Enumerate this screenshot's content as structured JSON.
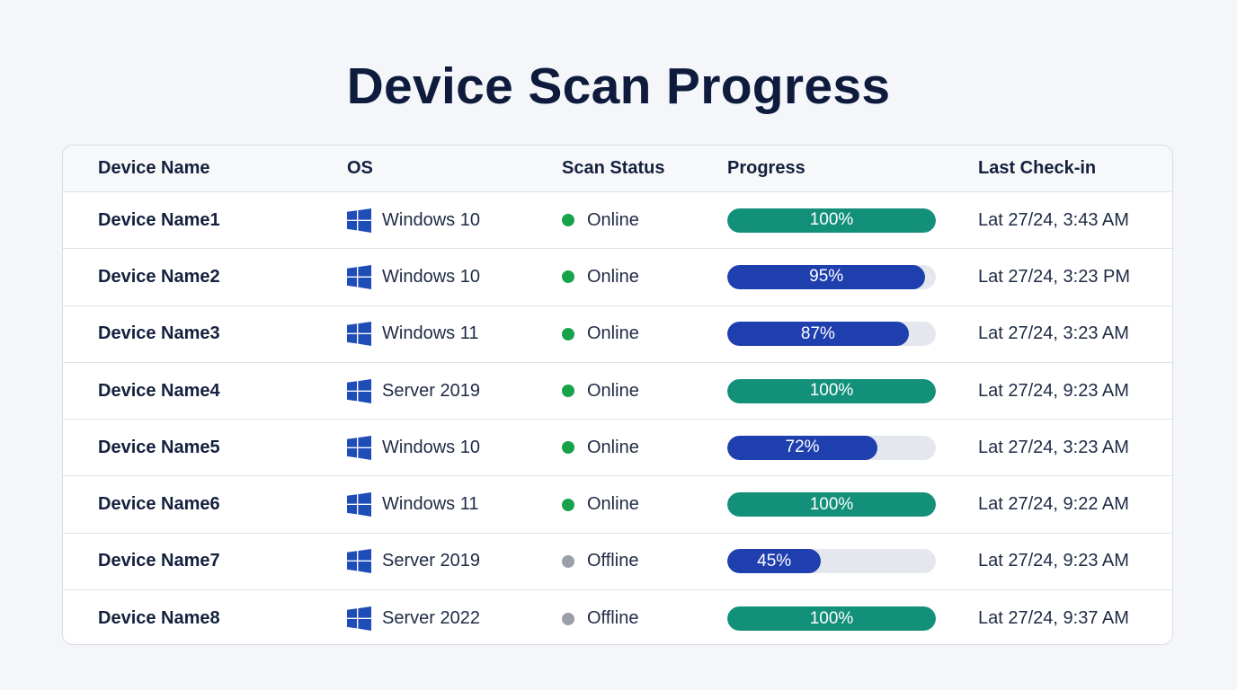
{
  "page": {
    "title": "Device Scan Progress"
  },
  "colors": {
    "complete": "#13907a",
    "in_progress": "#1f3fae",
    "online": "#16a34a",
    "offline": "#9aa0a8",
    "track": "#e4e7ed"
  },
  "table": {
    "columns": [
      "Device Name",
      "OS",
      "Scan Status",
      "Progress",
      "Last Check-in"
    ],
    "rows": [
      {
        "device": "Device Name1",
        "os": "Windows 10",
        "os_icon": "windows-logo-icon",
        "status": "Online",
        "progress": 100,
        "progress_label": "100%",
        "last_checkin": "Lat 27/24, 3:43 AM"
      },
      {
        "device": "Device Name2",
        "os": "Windows 10",
        "os_icon": "windows-logo-icon",
        "status": "Online",
        "progress": 95,
        "progress_label": "95%",
        "last_checkin": "Lat 27/24, 3:23 PM"
      },
      {
        "device": "Device Name3",
        "os": "Windows 11",
        "os_icon": "windows-logo-icon",
        "status": "Online",
        "progress": 87,
        "progress_label": "87%",
        "last_checkin": "Lat 27/24, 3:23 AM"
      },
      {
        "device": "Device Name4",
        "os": "Server 2019",
        "os_icon": "windows-logo-icon",
        "status": "Online",
        "progress": 100,
        "progress_label": "100%",
        "last_checkin": "Lat 27/24, 9:23 AM"
      },
      {
        "device": "Device Name5",
        "os": "Windows 10",
        "os_icon": "windows-logo-icon",
        "status": "Online",
        "progress": 72,
        "progress_label": "72%",
        "last_checkin": "Lat 27/24, 3:23 AM"
      },
      {
        "device": "Device Name6",
        "os": "Windows 11",
        "os_icon": "windows-logo-icon",
        "status": "Online",
        "progress": 100,
        "progress_label": "100%",
        "last_checkin": "Lat 27/24, 9:22 AM"
      },
      {
        "device": "Device Name7",
        "os": "Server 2019",
        "os_icon": "windows-logo-icon",
        "status": "Offline",
        "progress": 45,
        "progress_label": "45%",
        "last_checkin": "Lat 27/24, 9:23 AM"
      },
      {
        "device": "Device Name8",
        "os": "Server 2022",
        "os_icon": "windows-logo-icon",
        "status": "Offline",
        "progress": 100,
        "progress_label": "100%",
        "last_checkin": "Lat 27/24, 9:37 AM"
      }
    ]
  }
}
